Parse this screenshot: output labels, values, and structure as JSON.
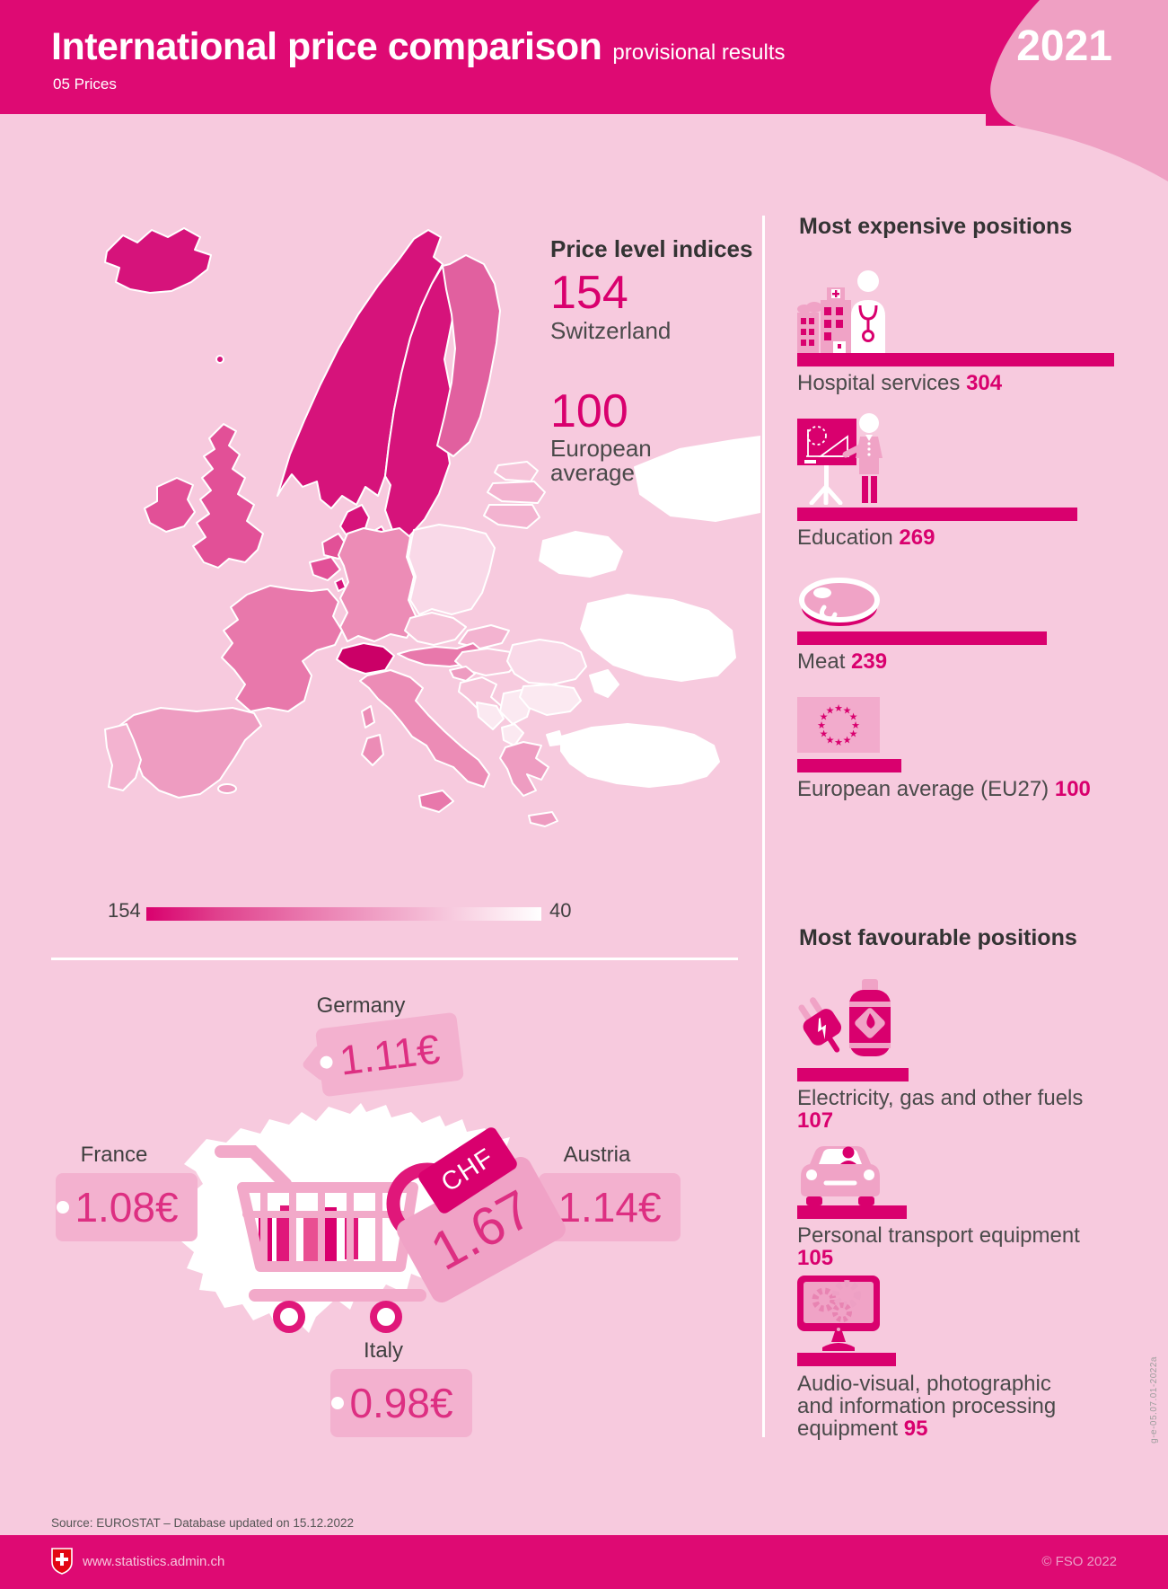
{
  "header": {
    "title": "International price comparison",
    "tagline": "provisional results",
    "section": "05 Prices",
    "year": "2021"
  },
  "price_level": {
    "heading": "Price level indices",
    "items": [
      {
        "value": "154",
        "label": "Switzerland"
      },
      {
        "value": "100",
        "label": "European average"
      }
    ]
  },
  "legend": {
    "max": "154",
    "min": "40"
  },
  "positions": {
    "expensive": {
      "heading": "Most expensive positions",
      "items": [
        {
          "label": "Hospital services",
          "value": "304",
          "icon": "hospital-icon"
        },
        {
          "label": "Education",
          "value": "269",
          "icon": "education-icon"
        },
        {
          "label": "Meat",
          "value": "239",
          "icon": "meat-icon"
        },
        {
          "label": "European average (EU27)",
          "value": "100",
          "icon": "eu-flag-icon"
        }
      ]
    },
    "favourable": {
      "heading": "Most favourable positions",
      "items": [
        {
          "label": "Electricity, gas and other fuels",
          "value": "107",
          "icon": "electricity-icon"
        },
        {
          "label": "Personal transport equipment",
          "value": "105",
          "icon": "car-icon"
        },
        {
          "label": "Audio-visual, photographic and information processing equipment",
          "value": "95",
          "icon": "monitor-icon"
        }
      ]
    }
  },
  "basket": {
    "chf": {
      "currency": "CHF",
      "amount": "1.67"
    },
    "countries": [
      {
        "name": "Germany",
        "price": "1.11€"
      },
      {
        "name": "France",
        "price": "1.08€"
      },
      {
        "name": "Austria",
        "price": "1.14€"
      },
      {
        "name": "Italy",
        "price": "0.98€"
      }
    ]
  },
  "footer": {
    "source": "Source: EUROSTAT – Database updated on 15.12.2022",
    "url": "www.statistics.admin.ch",
    "copyright": "© FSO 2022",
    "code": "g-e-05.07.01-2022a"
  },
  "colors": {
    "accent": "#d9006e",
    "header_band": "#de0a73",
    "page_background": "#f7cade",
    "icon_tile": "#f0a3c6",
    "price_tag": "#f3b1cf"
  },
  "chart_data": {
    "type": "bar",
    "title": "International price comparison 2021 (provisional results)",
    "subtitle": "05 Prices",
    "series": [
      {
        "name": "Most expensive positions",
        "categories": [
          "Hospital services",
          "Education",
          "Meat",
          "European average (EU27)"
        ],
        "values": [
          304,
          269,
          239,
          100
        ]
      },
      {
        "name": "Most favourable positions",
        "categories": [
          "Electricity, gas and other fuels",
          "Personal transport equipment",
          "Audio-visual, photographic and information processing equipment"
        ],
        "values": [
          107,
          105,
          95
        ]
      }
    ],
    "price_level_indices": {
      "Switzerland": 154,
      "European average": 100
    },
    "map_legend": {
      "type": "choropleth",
      "max": 154,
      "min": 40,
      "note": "price level index, Europe map"
    },
    "basket_prices": {
      "Switzerland": "CHF 1.67",
      "Germany": "1.11€",
      "France": "1.08€",
      "Austria": "1.14€",
      "Italy": "0.98€"
    }
  }
}
